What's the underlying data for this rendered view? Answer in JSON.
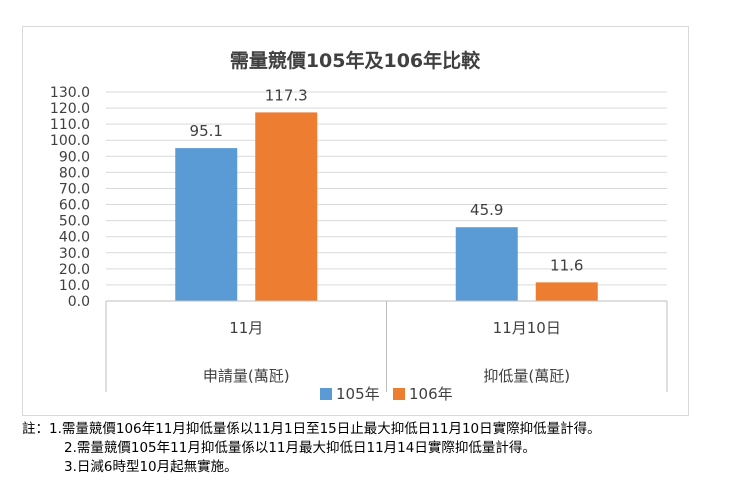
{
  "chart_data": {
    "type": "bar",
    "title": "需量競價105年及106年比較",
    "groups": [
      {
        "outer_label": "申請量(萬瓩)",
        "categories": [
          "11月"
        ]
      },
      {
        "outer_label": "抑低量(萬瓩)",
        "categories": [
          "11月10日"
        ]
      }
    ],
    "categories": [
      "11月",
      "11月10日"
    ],
    "series": [
      {
        "name": "105年",
        "color": "#5b9bd5",
        "values": [
          95.1,
          45.9
        ]
      },
      {
        "name": "106年",
        "color": "#ed7d31",
        "values": [
          117.3,
          11.6
        ]
      }
    ],
    "ylim": [
      0,
      130
    ],
    "ytick_step": 10,
    "ytick_labels": [
      "0.0",
      "10.0",
      "20.0",
      "30.0",
      "40.0",
      "50.0",
      "60.0",
      "70.0",
      "80.0",
      "90.0",
      "100.0",
      "110.0",
      "120.0",
      "130.0"
    ],
    "grid": true,
    "legend_position": "bottom"
  },
  "notes": {
    "line1": "註：1.需量競價106年11月抑低量係以11月1日至15日止最大抑低日11月10日實際抑低量計得。",
    "line2": "2.需量競價105年11月抑低量係以11月最大抑低日11月14日實際抑低量計得。",
    "line3": "3.日減6時型10月起無實施。"
  }
}
